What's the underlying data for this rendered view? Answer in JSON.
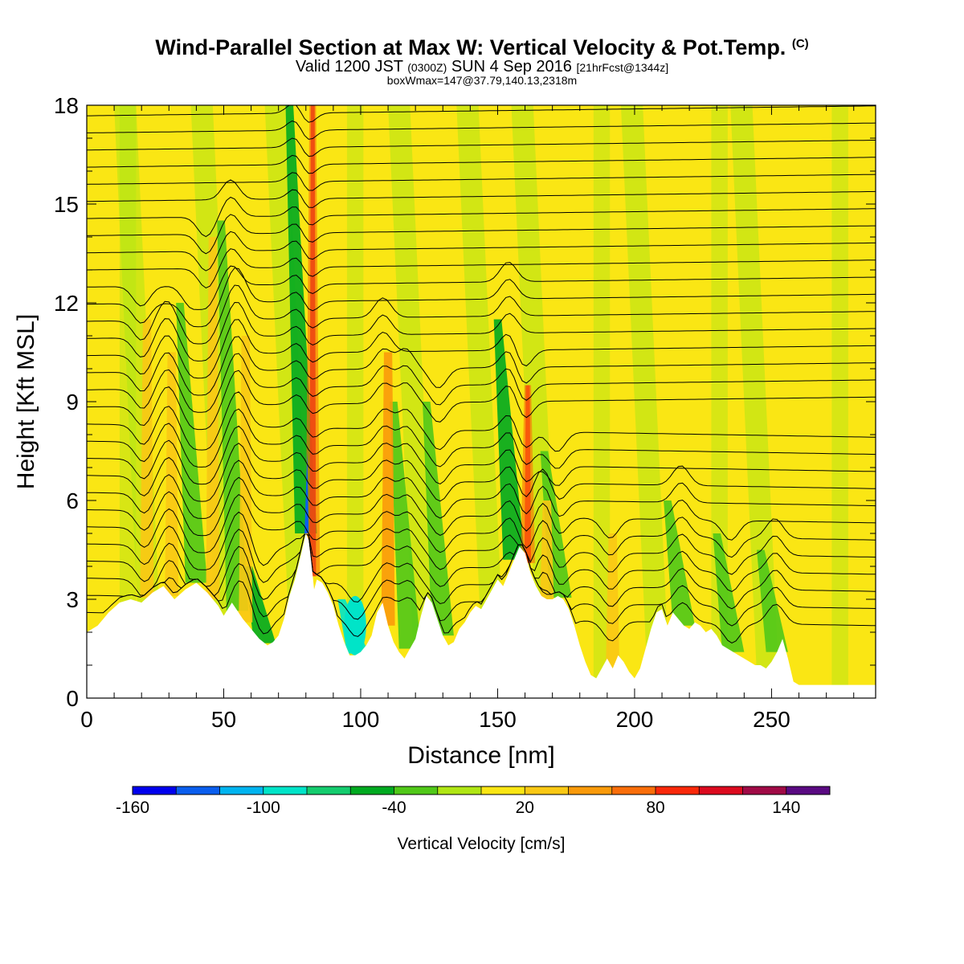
{
  "chart_data": {
    "type": "heatmap",
    "title": "Wind-Parallel Section at Max W: Vertical Velocity & Pot.Temp.",
    "title_mark": "(C)",
    "subtitle_valid": "Valid 1200 JST",
    "subtitle_z": "(0300Z)",
    "subtitle_date": "SUN 4 Sep 2016",
    "subtitle_fcst": "[21hrFcst@1344z]",
    "subtitle2": "boxWmax=147@37.79,140.13,2318m",
    "xlabel": "Distance [nm]",
    "ylabel": "Height [Kft MSL]",
    "xlim": [
      0,
      288
    ],
    "ylim": [
      0,
      18
    ],
    "xticks": [
      0,
      50,
      100,
      150,
      200,
      250
    ],
    "yticks": [
      0,
      3,
      6,
      9,
      12,
      15,
      18
    ],
    "colorbar": {
      "label": "Vertical Velocity [cm/s]",
      "ticks": [
        "-160",
        "-100",
        "-40",
        "20",
        "80",
        "140"
      ],
      "colors": [
        "#0000ee",
        "#0a5eee",
        "#00b4f0",
        "#00e4c8",
        "#14cc6e",
        "#00aa20",
        "#50c818",
        "#b0e614",
        "#fae614",
        "#fac814",
        "#fa9a0a",
        "#fa6e0a",
        "#fa280a",
        "#dc0a1e",
        "#a00a46",
        "#5a0a82"
      ]
    },
    "terrain_kft": [
      [
        0,
        2.0
      ],
      [
        4,
        2.2
      ],
      [
        8,
        2.6
      ],
      [
        12,
        2.9
      ],
      [
        16,
        3.0
      ],
      [
        20,
        2.9
      ],
      [
        24,
        3.2
      ],
      [
        28,
        3.4
      ],
      [
        32,
        3.0
      ],
      [
        36,
        3.3
      ],
      [
        40,
        3.5
      ],
      [
        44,
        3.2
      ],
      [
        48,
        2.8
      ],
      [
        50,
        2.5
      ],
      [
        53,
        2.9
      ],
      [
        57,
        2.4
      ],
      [
        60,
        2.1
      ],
      [
        63,
        1.8
      ],
      [
        66,
        1.6
      ],
      [
        68,
        1.7
      ],
      [
        70,
        1.9
      ],
      [
        72,
        2.4
      ],
      [
        74,
        3.1
      ],
      [
        76,
        3.6
      ],
      [
        78,
        4.3
      ],
      [
        80,
        5.0
      ],
      [
        81,
        4.8
      ],
      [
        82,
        4.1
      ],
      [
        83,
        3.3
      ],
      [
        84,
        3.6
      ],
      [
        86,
        3.5
      ],
      [
        88,
        3.2
      ],
      [
        90,
        2.8
      ],
      [
        92,
        2.2
      ],
      [
        94,
        1.7
      ],
      [
        96,
        1.3
      ],
      [
        98,
        1.3
      ],
      [
        100,
        1.4
      ],
      [
        102,
        1.6
      ],
      [
        104,
        1.9
      ],
      [
        106,
        2.6
      ],
      [
        108,
        2.9
      ],
      [
        110,
        2.2
      ],
      [
        112,
        1.7
      ],
      [
        114,
        1.4
      ],
      [
        116,
        1.2
      ],
      [
        118,
        1.5
      ],
      [
        120,
        1.8
      ],
      [
        122,
        2.5
      ],
      [
        124,
        3.1
      ],
      [
        126,
        2.9
      ],
      [
        128,
        2.4
      ],
      [
        130,
        1.9
      ],
      [
        132,
        1.6
      ],
      [
        134,
        1.7
      ],
      [
        136,
        2.1
      ],
      [
        138,
        2.3
      ],
      [
        140,
        2.6
      ],
      [
        142,
        2.8
      ],
      [
        144,
        2.7
      ],
      [
        146,
        3.0
      ],
      [
        148,
        3.3
      ],
      [
        150,
        3.6
      ],
      [
        152,
        3.4
      ],
      [
        154,
        3.8
      ],
      [
        156,
        4.2
      ],
      [
        158,
        4.6
      ],
      [
        160,
        4.4
      ],
      [
        162,
        3.8
      ],
      [
        164,
        3.4
      ],
      [
        166,
        3.1
      ],
      [
        168,
        3.0
      ],
      [
        170,
        3.0
      ],
      [
        172,
        3.1
      ],
      [
        174,
        3.0
      ],
      [
        176,
        2.7
      ],
      [
        178,
        2.2
      ],
      [
        180,
        1.6
      ],
      [
        182,
        1.1
      ],
      [
        184,
        0.7
      ],
      [
        186,
        0.6
      ],
      [
        188,
        0.9
      ],
      [
        190,
        1.2
      ],
      [
        192,
        0.9
      ],
      [
        194,
        1.3
      ],
      [
        196,
        1.1
      ],
      [
        198,
        0.8
      ],
      [
        200,
        0.6
      ],
      [
        202,
        0.9
      ],
      [
        204,
        1.5
      ],
      [
        206,
        2.1
      ],
      [
        208,
        2.6
      ],
      [
        210,
        2.7
      ],
      [
        212,
        2.2
      ],
      [
        214,
        2.6
      ],
      [
        216,
        2.4
      ],
      [
        218,
        2.2
      ],
      [
        220,
        2.1
      ],
      [
        222,
        2.3
      ],
      [
        224,
        2.2
      ],
      [
        226,
        2.0
      ],
      [
        228,
        2.1
      ],
      [
        230,
        1.9
      ],
      [
        232,
        1.6
      ],
      [
        234,
        1.5
      ],
      [
        236,
        1.4
      ],
      [
        238,
        1.3
      ],
      [
        240,
        1.2
      ],
      [
        242,
        1.1
      ],
      [
        244,
        1.0
      ],
      [
        246,
        1.0
      ],
      [
        248,
        0.9
      ],
      [
        250,
        1.1
      ],
      [
        252,
        1.4
      ],
      [
        254,
        1.8
      ],
      [
        256,
        1.2
      ],
      [
        258,
        0.5
      ],
      [
        260,
        0.4
      ],
      [
        264,
        0.4
      ],
      [
        270,
        0.4
      ],
      [
        276,
        0.4
      ],
      [
        282,
        0.4
      ],
      [
        288,
        0.4
      ]
    ],
    "updraft_bands": [
      {
        "x": 22,
        "top": 11.5,
        "value": 20
      },
      {
        "x": 31,
        "top": 10.5,
        "value": 20
      },
      {
        "x": 46,
        "top": 14.0,
        "value": 20
      },
      {
        "x": 58,
        "top": 11.0,
        "value": 20
      },
      {
        "x": 82.5,
        "top": 18.0,
        "value": 100
      },
      {
        "x": 110,
        "top": 10.5,
        "value": 40
      },
      {
        "x": 161,
        "top": 9.5,
        "value": 80
      },
      {
        "x": 168,
        "top": 6.0,
        "value": 30
      },
      {
        "x": 192,
        "top": 5.0,
        "value": 30
      }
    ],
    "downdraft_bands": [
      {
        "x": 40,
        "top": 12.0,
        "value": -30
      },
      {
        "x": 55,
        "top": 14.5,
        "value": -30
      },
      {
        "x": 65,
        "top": 4.0,
        "value": -50
      },
      {
        "x": 80,
        "top": 18.0,
        "value": -50
      },
      {
        "x": 99,
        "top": 3.0,
        "value": -90
      },
      {
        "x": 118,
        "top": 9.0,
        "value": -30
      },
      {
        "x": 130,
        "top": 9.0,
        "value": -40
      },
      {
        "x": 156,
        "top": 11.5,
        "value": -50
      },
      {
        "x": 173,
        "top": 7.5,
        "value": -40
      },
      {
        "x": 218,
        "top": 6.0,
        "value": -30
      },
      {
        "x": 236,
        "top": 5.0,
        "value": -30
      },
      {
        "x": 252,
        "top": 4.5,
        "value": -30
      }
    ]
  }
}
